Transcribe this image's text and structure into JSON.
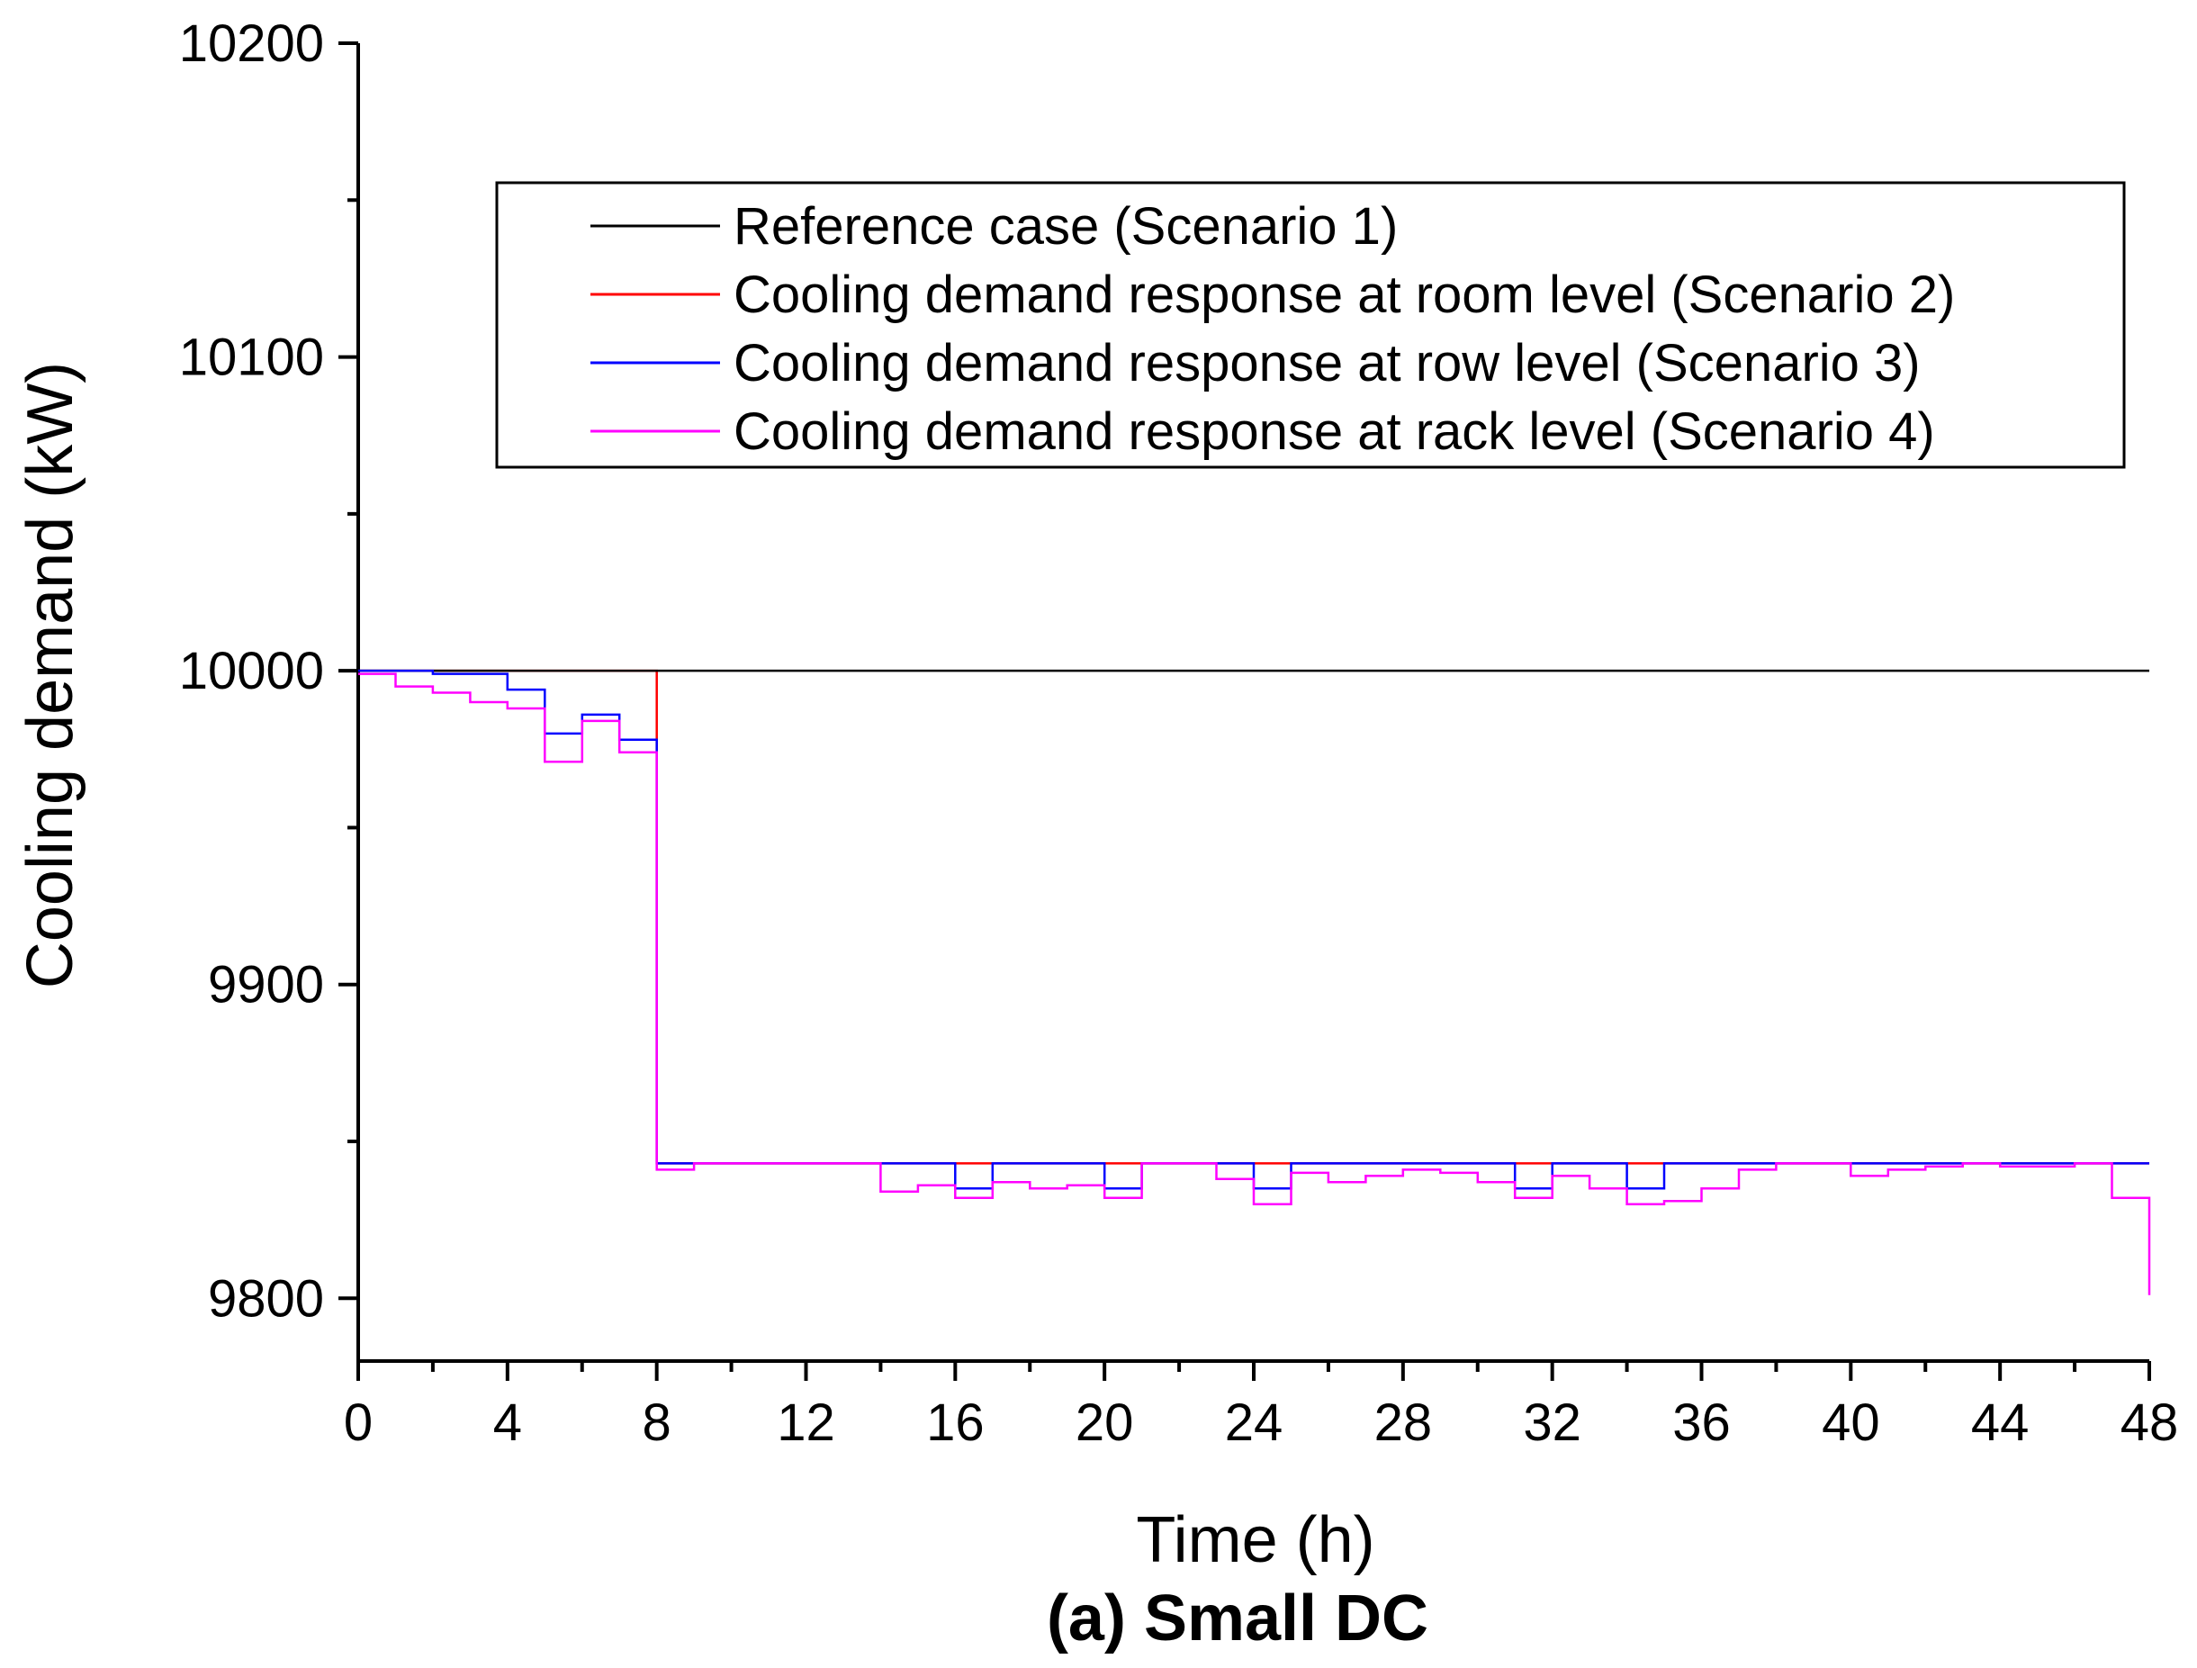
{
  "chart_data": {
    "type": "line",
    "step": true,
    "caption": "(a) Small DC",
    "xlabel": "Time (h)",
    "ylabel": "Cooling demand (kW)",
    "xlim": [
      0,
      48
    ],
    "ylim": [
      9780,
      10200
    ],
    "xticks": [
      0,
      4,
      8,
      12,
      16,
      20,
      24,
      28,
      32,
      36,
      40,
      44,
      48
    ],
    "yticks": [
      9800,
      9900,
      10000,
      10100,
      10200
    ],
    "legend_position": "top-right",
    "x": [
      0,
      1,
      2,
      3,
      4,
      5,
      6,
      7,
      8,
      9,
      10,
      11,
      12,
      13,
      14,
      15,
      16,
      17,
      18,
      19,
      20,
      21,
      22,
      23,
      24,
      25,
      26,
      27,
      28,
      29,
      30,
      31,
      32,
      33,
      34,
      35,
      36,
      37,
      38,
      39,
      40,
      41,
      42,
      43,
      44,
      45,
      46,
      47,
      48
    ],
    "series": [
      {
        "name": "Reference case (Scenario 1)",
        "color": "#000000",
        "values": [
          10000,
          10000,
          10000,
          10000,
          10000,
          10000,
          10000,
          10000,
          10000,
          10000,
          10000,
          10000,
          10000,
          10000,
          10000,
          10000,
          10000,
          10000,
          10000,
          10000,
          10000,
          10000,
          10000,
          10000,
          10000,
          10000,
          10000,
          10000,
          10000,
          10000,
          10000,
          10000,
          10000,
          10000,
          10000,
          10000,
          10000,
          10000,
          10000,
          10000,
          10000,
          10000,
          10000,
          10000,
          10000,
          10000,
          10000,
          10000,
          10000
        ]
      },
      {
        "name": "Cooling demand response at room level (Scenario 2)",
        "color": "#ff0000",
        "values": [
          10000,
          10000,
          10000,
          10000,
          10000,
          10000,
          10000,
          10000,
          9843,
          9843,
          9843,
          9843,
          9843,
          9843,
          9843,
          9843,
          9843,
          9843,
          9843,
          9843,
          9843,
          9843,
          9843,
          9843,
          9843,
          9843,
          9843,
          9843,
          9843,
          9843,
          9843,
          9843,
          9843,
          9843,
          9843,
          9843,
          9843,
          9843,
          9843,
          9843,
          9843,
          9843,
          9843,
          9843,
          9843,
          9843,
          9843,
          9843,
          9843
        ]
      },
      {
        "name": "Cooling demand response at row level (Scenario 3)",
        "color": "#0000ff",
        "values": [
          10000,
          10000,
          9999,
          9999,
          9994,
          9980,
          9986,
          9978,
          9843,
          9843,
          9843,
          9843,
          9843,
          9843,
          9843,
          9843,
          9835,
          9843,
          9843,
          9843,
          9835,
          9843,
          9843,
          9843,
          9835,
          9843,
          9843,
          9843,
          9843,
          9843,
          9843,
          9835,
          9843,
          9843,
          9835,
          9843,
          9843,
          9843,
          9843,
          9843,
          9843,
          9843,
          9843,
          9843,
          9843,
          9843,
          9843,
          9843,
          9843
        ]
      },
      {
        "name": "Cooling demand response at rack level (Scenario 4)",
        "color": "#ff00ff",
        "values": [
          9999,
          9995,
          9993,
          9990,
          9988,
          9971,
          9984,
          9974,
          9841,
          9843,
          9843,
          9843,
          9843,
          9843,
          9834,
          9836,
          9832,
          9837,
          9835,
          9836,
          9832,
          9843,
          9843,
          9838,
          9830,
          9840,
          9837,
          9839,
          9841,
          9840,
          9837,
          9832,
          9839,
          9835,
          9830,
          9831,
          9835,
          9841,
          9843,
          9843,
          9839,
          9841,
          9842,
          9843,
          9842,
          9842,
          9843,
          9832,
          9801
        ]
      }
    ]
  }
}
